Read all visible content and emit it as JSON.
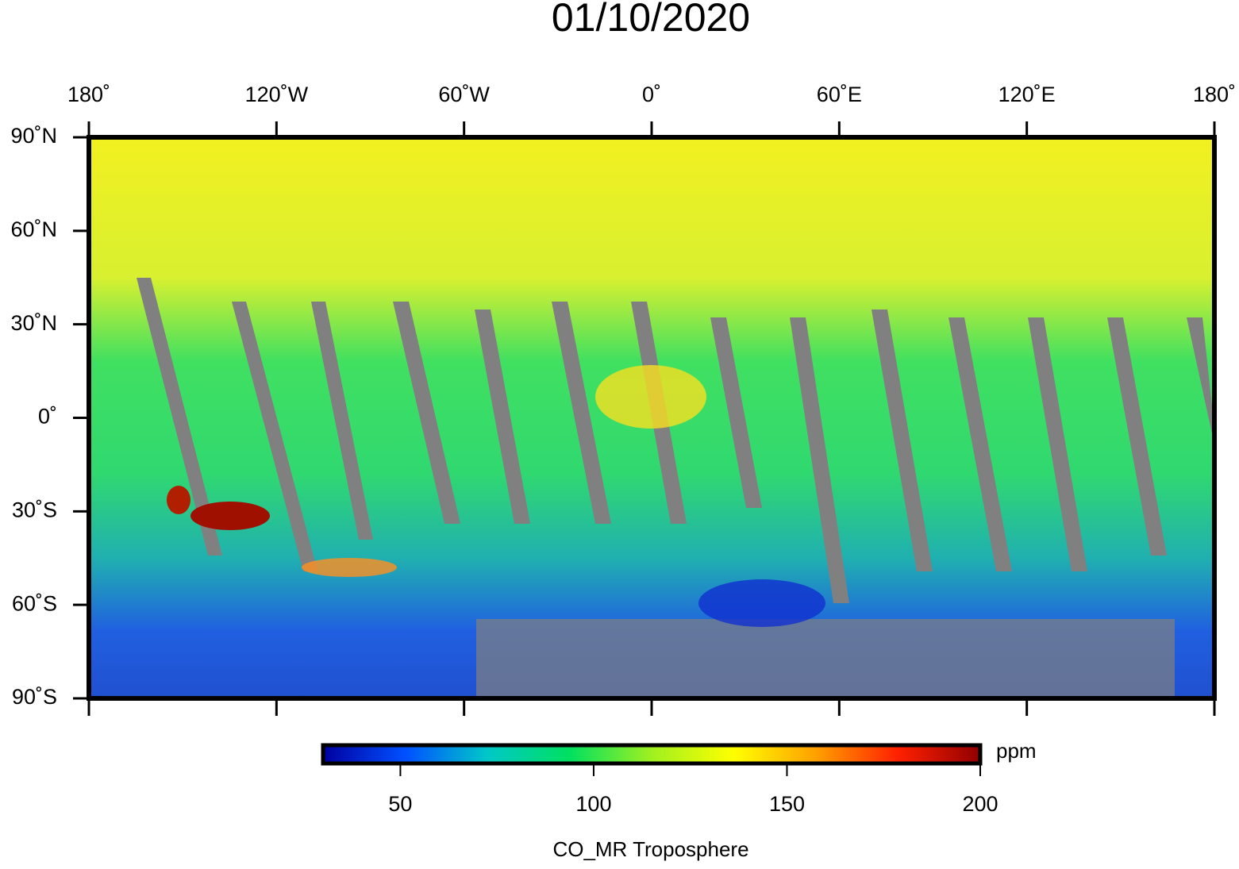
{
  "title": "01/10/2020",
  "map": {
    "xlim": [
      -180,
      180
    ],
    "ylim": [
      -90,
      90
    ],
    "xticks": [
      {
        "value": -180,
        "label": "180˚"
      },
      {
        "value": -120,
        "label": "120˚W"
      },
      {
        "value": -60,
        "label": "60˚W"
      },
      {
        "value": 0,
        "label": "0˚"
      },
      {
        "value": 60,
        "label": "60˚E"
      },
      {
        "value": 120,
        "label": "120˚E"
      },
      {
        "value": 180,
        "label": "180˚"
      }
    ],
    "yticks": [
      {
        "value": 90,
        "label": "90˚N"
      },
      {
        "value": 60,
        "label": "60˚N"
      },
      {
        "value": 30,
        "label": "30˚N"
      },
      {
        "value": 0,
        "label": "0˚"
      },
      {
        "value": -30,
        "label": "30˚S"
      },
      {
        "value": -60,
        "label": "60˚S"
      },
      {
        "value": -90,
        "label": "90˚S"
      }
    ]
  },
  "colorbar": {
    "title": "CO_MR Troposphere",
    "unit": "ppm",
    "lim": [
      30,
      200
    ],
    "ticks": [
      50,
      100,
      150,
      200
    ],
    "colors": [
      "#0000a0",
      "#0050ff",
      "#00c8c8",
      "#00e060",
      "#a0f020",
      "#ffff00",
      "#ffa000",
      "#ff2000",
      "#900000"
    ]
  }
}
